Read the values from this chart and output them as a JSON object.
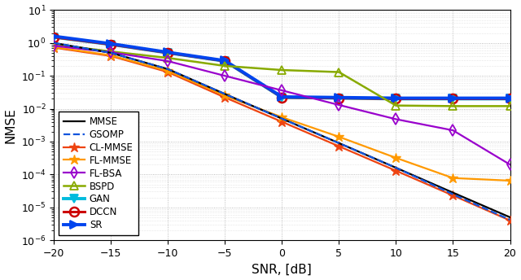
{
  "snr": [
    -20,
    -15,
    -10,
    -5,
    0,
    5,
    10,
    15,
    20
  ],
  "MMSE": [
    1.0,
    0.5,
    0.16,
    0.028,
    0.005,
    0.0009,
    0.00016,
    2.8e-05,
    5e-06
  ],
  "GSOMP": [
    1.0,
    0.5,
    0.16,
    0.028,
    0.005,
    0.0009,
    0.00016,
    2.5e-05,
    4.2e-06
  ],
  "CL_MMSE": [
    0.72,
    0.4,
    0.13,
    0.022,
    0.004,
    0.00072,
    0.00013,
    2.3e-05,
    4e-06
  ],
  "FL_MMSE": [
    0.75,
    0.42,
    0.14,
    0.025,
    0.0055,
    0.0014,
    0.00032,
    7.8e-05,
    6.5e-05
  ],
  "FL_BSA": [
    0.82,
    0.52,
    0.28,
    0.1,
    0.036,
    0.013,
    0.0048,
    0.0022,
    0.0002
  ],
  "BSPD": [
    0.9,
    0.55,
    0.35,
    0.2,
    0.15,
    0.13,
    0.0125,
    0.012,
    0.012
  ],
  "GAN": [
    1.5,
    0.9,
    0.5,
    0.28,
    0.022,
    0.021,
    0.02,
    0.02,
    0.02
  ],
  "DCCN": [
    1.5,
    0.9,
    0.5,
    0.28,
    0.022,
    0.021,
    0.02,
    0.02,
    0.02
  ],
  "SR": [
    1.6,
    0.95,
    0.52,
    0.29,
    0.023,
    0.022,
    0.021,
    0.021,
    0.021
  ],
  "colors": {
    "MMSE": "#000000",
    "GSOMP": "#1155DD",
    "CL_MMSE": "#EE4411",
    "FL_MMSE": "#FF9900",
    "FL_BSA": "#9900CC",
    "BSPD": "#88AA00",
    "GAN": "#00BBDD",
    "DCCN": "#CC0000",
    "SR": "#0044EE"
  },
  "xlabel": "SNR, [dB]",
  "ylabel": "NMSE",
  "ylim_log": [
    -6,
    1
  ],
  "xlim": [
    -20,
    20
  ],
  "xticks": [
    -20,
    -15,
    -10,
    -5,
    0,
    5,
    10,
    15,
    20
  ]
}
